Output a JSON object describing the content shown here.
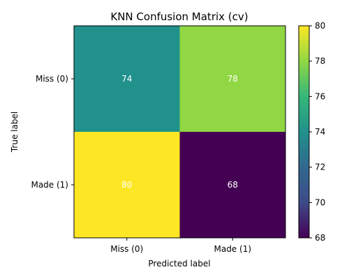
{
  "chart_data": {
    "type": "heatmap",
    "title": "KNN Confusion Matrix (cv)",
    "xlabel": "Predicted label",
    "ylabel": "True label",
    "x_categories": [
      "Miss (0)",
      "Made (1)"
    ],
    "y_categories": [
      "Miss (0)",
      "Made (1)"
    ],
    "values": [
      [
        74,
        78
      ],
      [
        80,
        68
      ]
    ],
    "colormap": "viridis",
    "colorbar": {
      "range": [
        68,
        80
      ],
      "ticks": [
        68,
        70,
        72,
        74,
        76,
        78,
        80
      ]
    },
    "cell_label_color": "#ffffff"
  }
}
